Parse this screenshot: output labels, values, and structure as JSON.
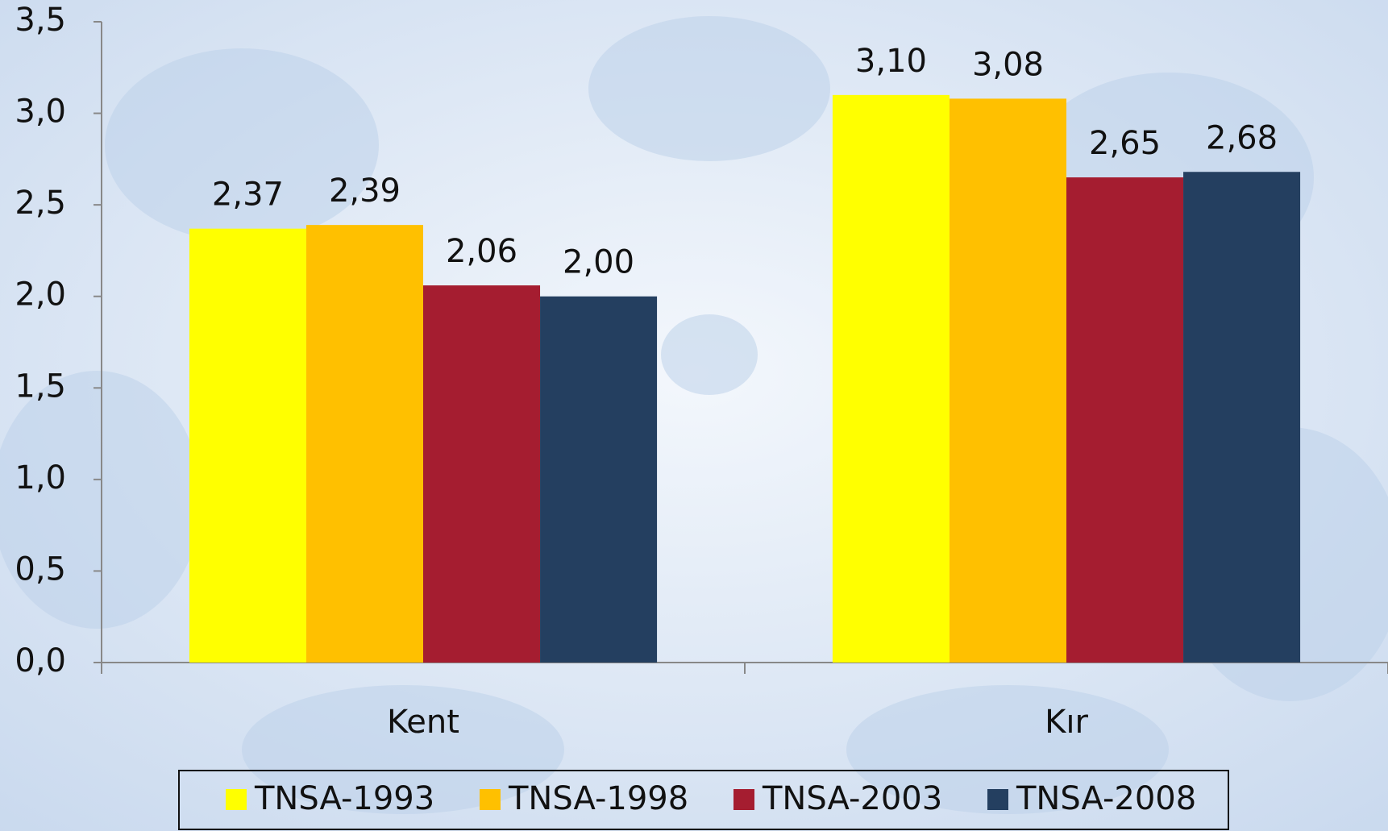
{
  "chart_data": {
    "type": "bar",
    "categories": [
      "Kent",
      "Kır"
    ],
    "series": [
      {
        "name": "TNSA-1993",
        "color": "#ffff00",
        "values": [
          2.37,
          3.1
        ],
        "value_labels": [
          "2,37",
          "3,10"
        ]
      },
      {
        "name": "TNSA-1998",
        "color": "#ffc000",
        "values": [
          2.39,
          3.08
        ],
        "value_labels": [
          "2,39",
          "3,08"
        ]
      },
      {
        "name": "TNSA-2003",
        "color": "#a51d30",
        "values": [
          2.06,
          2.65
        ],
        "value_labels": [
          "2,06",
          "2,65"
        ]
      },
      {
        "name": "TNSA-2008",
        "color": "#243f60",
        "values": [
          2.0,
          2.68
        ],
        "value_labels": [
          "2,00",
          "2,68"
        ]
      }
    ],
    "ylim": [
      0,
      3.5
    ],
    "yticks": [
      {
        "value": 0,
        "label": "0,0"
      },
      {
        "value": 0.5,
        "label": "0,5"
      },
      {
        "value": 1,
        "label": "1,0"
      },
      {
        "value": 1.5,
        "label": "1,5"
      },
      {
        "value": 2,
        "label": "2,0"
      },
      {
        "value": 2.5,
        "label": "2,5"
      },
      {
        "value": 3,
        "label": "3,0"
      },
      {
        "value": 3.5,
        "label": "3,5"
      }
    ],
    "grid": false,
    "legend": "bottom"
  }
}
